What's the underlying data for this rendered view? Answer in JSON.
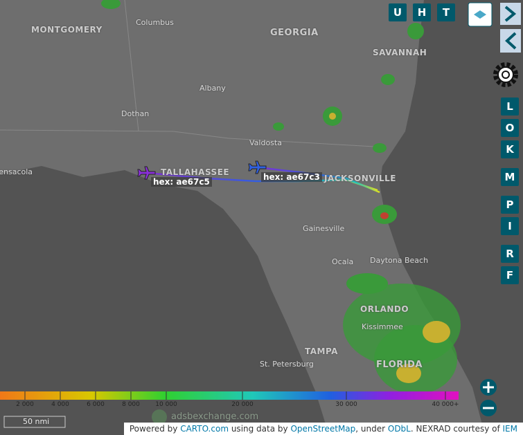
{
  "toolbar": {
    "top": [
      "U",
      "H",
      "T"
    ],
    "side": [
      "L",
      "O",
      "K",
      "M",
      "P",
      "I",
      "R",
      "F"
    ]
  },
  "map": {
    "places": [
      "MONTGOMERY",
      "Columbus",
      "GEORGIA",
      "SAVANNAH",
      "Albany",
      "Dothan",
      "Valdosta",
      "TALLAHASSEE",
      "Pensacola",
      "JACKSONVILLE",
      "Gainesville",
      "Ocala",
      "Daytona Beach",
      "ORLANDO",
      "Kissimmee",
      "TAMPA",
      "St. Petersburg",
      "FLORIDA"
    ],
    "aircraft": [
      "hex: ae67c5",
      "hex: ae67c3"
    ]
  },
  "altitude_legend": [
    "2 000",
    "4 000",
    "6 000",
    "8 000",
    "10 000",
    "20 000",
    "30 000",
    "40 000+"
  ],
  "scale": "50 nmi",
  "watermark": "adsbexchange.com",
  "attribution": [
    "Powered by ",
    "CARTO.com",
    " using data by ",
    "OpenStreetMap",
    ", under ",
    "ODbL",
    ". NEXRAD courtesy of ",
    "IEM"
  ]
}
